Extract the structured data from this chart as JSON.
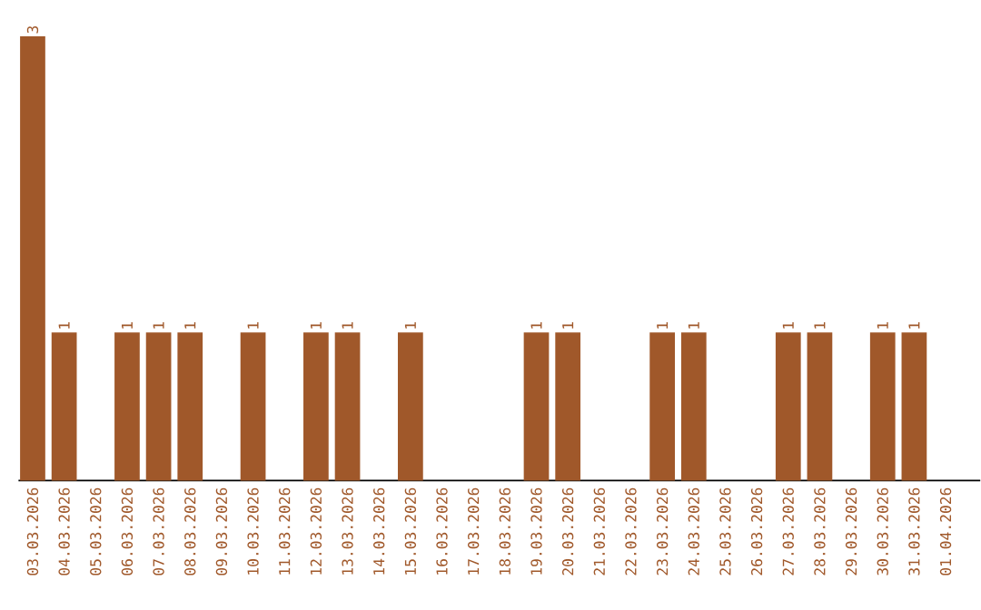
{
  "chart_data": {
    "type": "bar",
    "categories": [
      "03.03.2026",
      "04.03.2026",
      "05.03.2026",
      "06.03.2026",
      "07.03.2026",
      "08.03.2026",
      "09.03.2026",
      "10.03.2026",
      "11.03.2026",
      "12.03.2026",
      "13.03.2026",
      "14.03.2026",
      "15.03.2026",
      "16.03.2026",
      "17.03.2026",
      "18.03.2026",
      "19.03.2026",
      "20.03.2026",
      "21.03.2026",
      "22.03.2026",
      "23.03.2026",
      "24.03.2026",
      "25.03.2026",
      "26.03.2026",
      "27.03.2026",
      "28.03.2026",
      "29.03.2026",
      "30.03.2026",
      "31.03.2026",
      "01.04.2026"
    ],
    "values": [
      3,
      1,
      0,
      1,
      1,
      1,
      0,
      1,
      0,
      1,
      1,
      0,
      1,
      0,
      0,
      0,
      1,
      1,
      0,
      0,
      1,
      1,
      0,
      0,
      1,
      1,
      0,
      1,
      1,
      0
    ],
    "value_labels": [
      "3",
      "1",
      null,
      "1",
      "1",
      "1",
      null,
      "1",
      null,
      "1",
      "1",
      null,
      "1",
      null,
      null,
      null,
      "1",
      "1",
      null,
      null,
      "1",
      "1",
      null,
      null,
      "1",
      "1",
      null,
      "1",
      "1",
      null
    ],
    "color": "#a0582a",
    "tick_labels": "x"
  }
}
